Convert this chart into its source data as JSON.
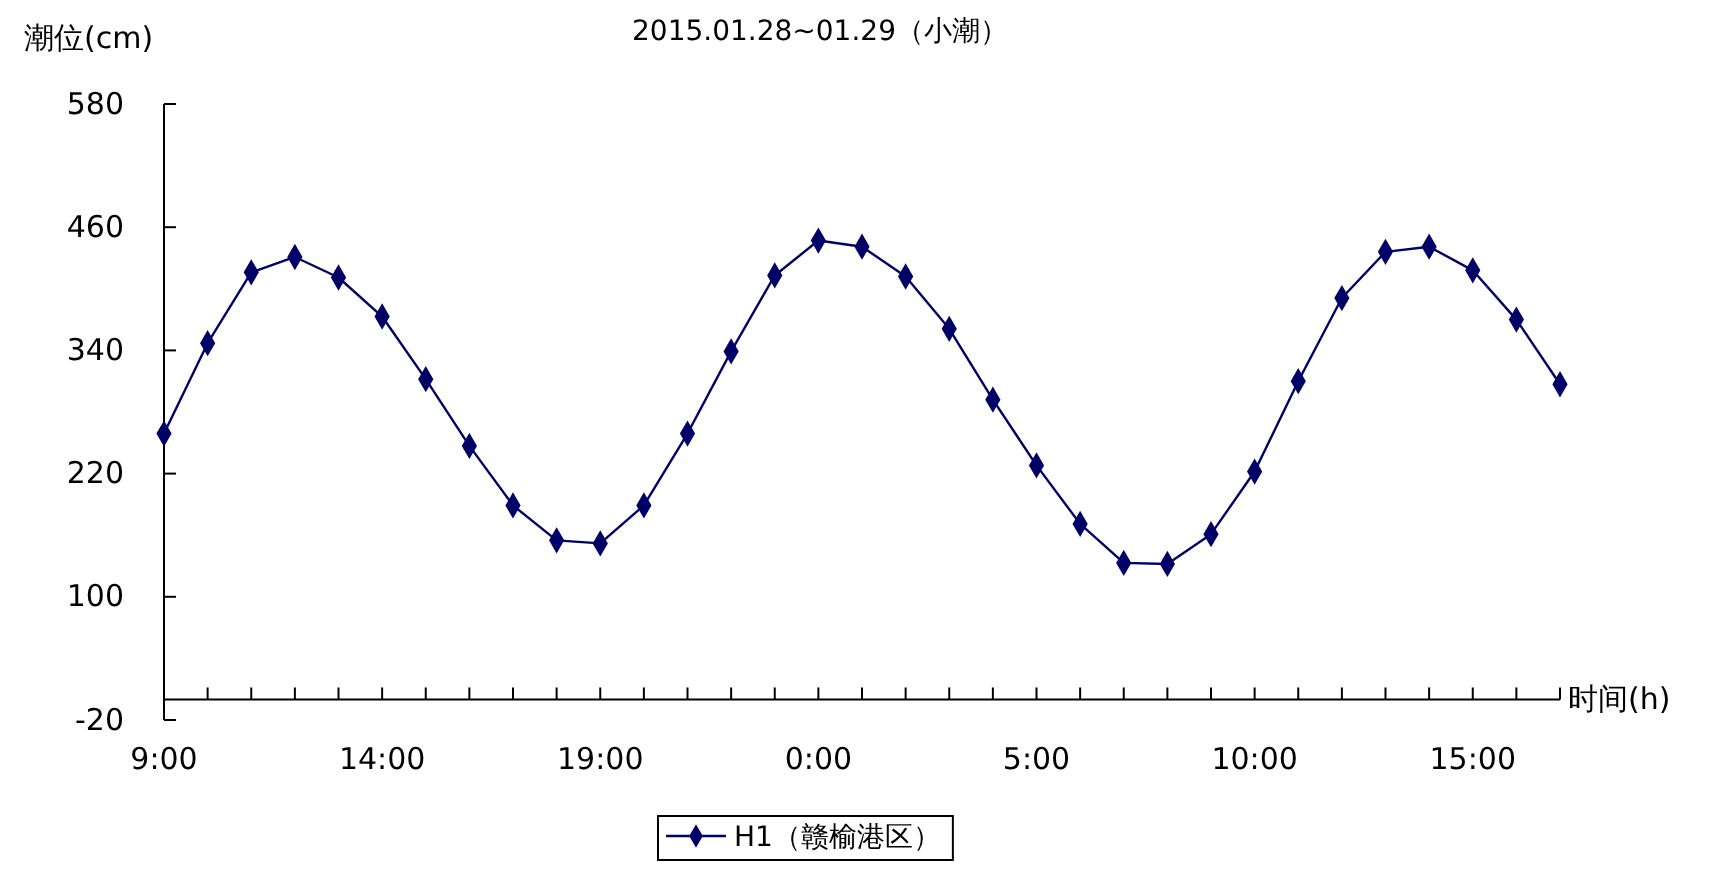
{
  "chart_data": {
    "type": "line",
    "title": "2015.01.28~01.29（小潮）",
    "ylabel": "潮位(cm)",
    "xlabel": "时间(h)",
    "categories": [
      "9:00",
      null,
      null,
      null,
      null,
      "14:00",
      null,
      null,
      null,
      null,
      "19:00",
      null,
      null,
      null,
      null,
      "0:00",
      null,
      null,
      null,
      null,
      "5:00",
      null,
      null,
      null,
      null,
      "10:00",
      null,
      null,
      null,
      null,
      "15:00",
      null,
      null
    ],
    "series": [
      {
        "name": "H1（赣榆港区）",
        "color": "#000066",
        "values": [
          259,
          347,
          416,
          431,
          411,
          373,
          312,
          247,
          189,
          155,
          152,
          189,
          259,
          339,
          413,
          447,
          441,
          412,
          361,
          292,
          228,
          171,
          133,
          132,
          161,
          222,
          310,
          391,
          436,
          441,
          418,
          370,
          307
        ]
      }
    ],
    "ylim": [
      -20,
      580
    ],
    "yticks": [
      -20,
      100,
      220,
      340,
      460,
      580
    ],
    "grid": false,
    "legend": "bottom",
    "marker": "diamond",
    "line_style": "solid"
  }
}
